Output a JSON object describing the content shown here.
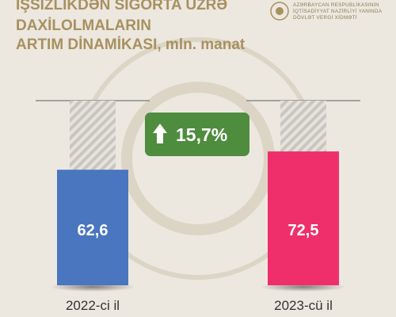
{
  "chart_data": {
    "type": "bar",
    "title_lines": [
      "İŞSİZLİKDƏN SIĞORTA ÜZRƏ",
      "DAXİLOLMALARIN",
      "ARTIM DİNAMİKASI, mln. manat"
    ],
    "logo_lines": [
      "AZƏRBAYCAN RESPUBLİKASININ",
      "İQTİSADİYYAT NAZİRLİYİ YANINDA",
      "DÖVLƏT VERGİ XİDMƏTİ"
    ],
    "categories": [
      "2022-ci il",
      "2023-cü il"
    ],
    "values": [
      62.6,
      72.5
    ],
    "value_labels": [
      "62,6",
      "72,5"
    ],
    "colors": [
      "#4a76c0",
      "#ef2f6c"
    ],
    "ylim": [
      0,
      100
    ],
    "annotation": "15,7%",
    "annotation_color": "#4e8c3e"
  }
}
